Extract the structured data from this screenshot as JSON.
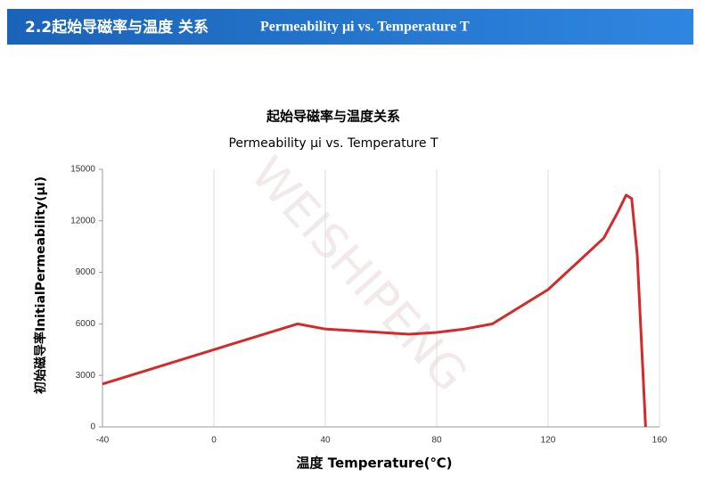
{
  "header": {
    "title": "2.2起始导磁率与温度 关系",
    "subtitle": "Permeability μi vs. Temperature T"
  },
  "watermark": "WEISHIPENG",
  "chart_data": {
    "type": "line",
    "title": "起始导磁率与温度关系",
    "subtitle": "Permeability μi vs. Temperature T",
    "x_label": "温度 Temperature(℃)",
    "y_label": "初始磁导率InitialPermeability(μi)",
    "x": [
      -40,
      0,
      30,
      40,
      60,
      70,
      80,
      90,
      100,
      110,
      120,
      130,
      140,
      145,
      148,
      150,
      152,
      155
    ],
    "values": [
      2500,
      4500,
      6000,
      5700,
      5500,
      5400,
      5500,
      5700,
      6000,
      7000,
      8000,
      9500,
      11000,
      12500,
      13500,
      13300,
      10000,
      0
    ],
    "color": "#d42a2a",
    "xlim": [
      -40,
      160
    ],
    "xticks": [
      -40,
      0,
      40,
      80,
      120,
      160
    ],
    "ylim": [
      0,
      15000
    ],
    "yticks": [
      0,
      3000,
      6000,
      9000,
      12000,
      15000
    ],
    "grid": "x"
  }
}
